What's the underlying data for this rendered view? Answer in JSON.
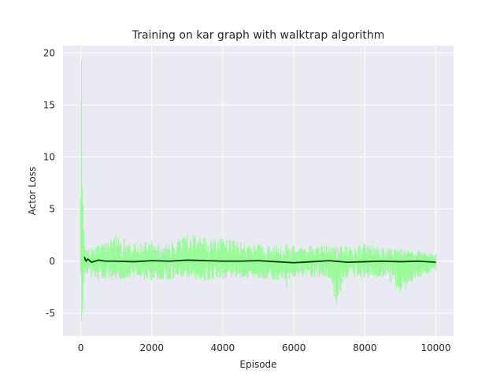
{
  "chart_data": {
    "type": "line",
    "title": "Training on kar graph with walktrap algorithm",
    "xlabel": "Episode",
    "ylabel": "Actor Loss",
    "xlim": [
      -500,
      10500
    ],
    "ylim": [
      -7.2,
      20.7
    ],
    "xticks": [
      0,
      2000,
      4000,
      6000,
      8000,
      10000
    ],
    "yticks": [
      -5,
      0,
      5,
      10,
      15,
      20
    ],
    "grid": true,
    "legend": "none",
    "background_color": "#eaeaf2",
    "grid_color": "#ffffff",
    "series": [
      {
        "role": "raw",
        "color": "#98fb98",
        "x": [
          0,
          20,
          40,
          60,
          80,
          100,
          150,
          200,
          300,
          400,
          500,
          700,
          1000,
          1500,
          2000,
          2500,
          3000,
          3500,
          4000,
          4500,
          5000,
          5500,
          5800,
          6000,
          6500,
          7000,
          7200,
          7500,
          8000,
          8500,
          9000,
          9500,
          10000
        ],
        "y_high": [
          6.0,
          19.2,
          7.0,
          5.5,
          3.0,
          1.5,
          1.2,
          1.0,
          1.3,
          1.2,
          1.5,
          1.8,
          2.6,
          1.7,
          2.0,
          1.6,
          2.6,
          2.2,
          2.2,
          1.8,
          1.6,
          1.5,
          1.6,
          1.5,
          1.5,
          1.5,
          1.4,
          1.4,
          1.7,
          1.3,
          1.2,
          1.0,
          0.7
        ],
        "y_low": [
          -1.0,
          -5.8,
          -5.0,
          -4.0,
          -2.0,
          -1.2,
          -1.1,
          -1.2,
          -1.5,
          -1.5,
          -1.8,
          -1.8,
          -1.8,
          -1.6,
          -1.9,
          -1.8,
          -1.6,
          -1.9,
          -1.7,
          -1.6,
          -1.6,
          -1.8,
          -2.6,
          -1.5,
          -1.5,
          -1.6,
          -4.2,
          -1.5,
          -1.6,
          -1.6,
          -3.0,
          -1.6,
          -0.9
        ]
      },
      {
        "role": "moving-average",
        "color": "#0a3d0a",
        "x": [
          100,
          150,
          200,
          300,
          400,
          500,
          700,
          1000,
          1500,
          2000,
          2500,
          3000,
          3500,
          4000,
          4500,
          5000,
          5500,
          6000,
          6500,
          7000,
          7500,
          8000,
          8500,
          9000,
          9500,
          10000
        ],
        "y": [
          0.4,
          0.0,
          0.2,
          -0.1,
          0.0,
          0.1,
          0.0,
          0.0,
          -0.05,
          0.05,
          0.0,
          0.1,
          0.05,
          0.0,
          0.0,
          0.05,
          -0.05,
          -0.15,
          -0.05,
          0.05,
          -0.1,
          -0.05,
          0.0,
          -0.05,
          0.0,
          -0.1
        ]
      }
    ]
  }
}
